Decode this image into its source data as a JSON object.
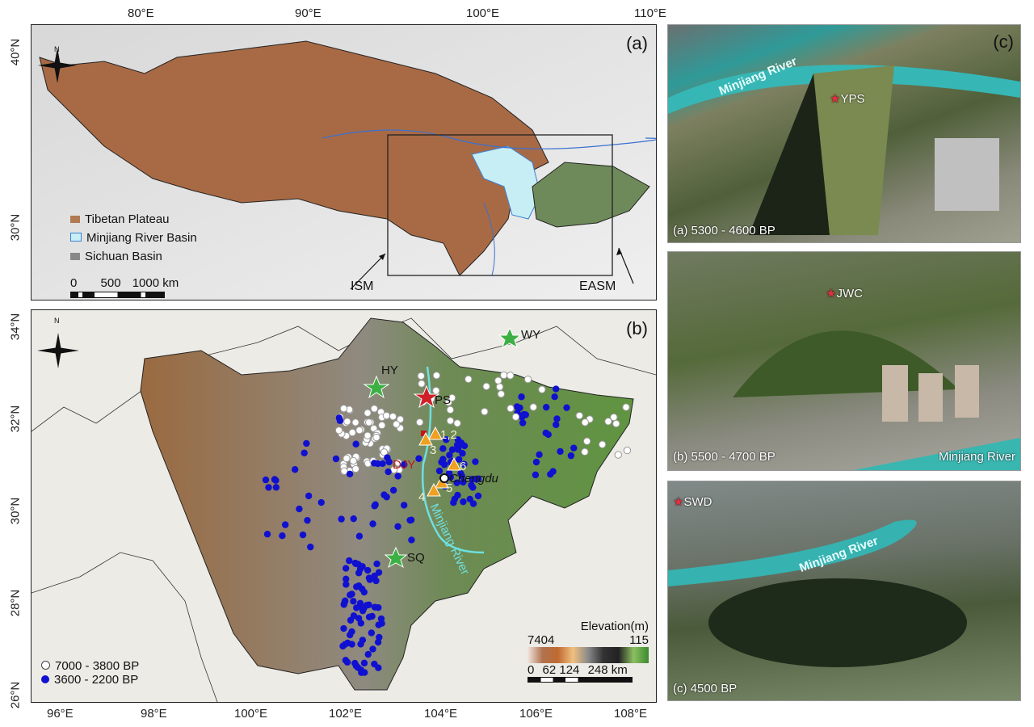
{
  "top_axis": [
    "80°E",
    "90°E",
    "100°E",
    "110°E"
  ],
  "panel_a": {
    "label": "(a)",
    "y_ticks": [
      "40°N",
      "30°N"
    ],
    "legend": [
      {
        "label": "Tibetan Plateau",
        "color": "#b07a52"
      },
      {
        "label": "Minjiang River Basin",
        "color": "#c8eef5"
      },
      {
        "label": "Sichuan Basin",
        "color": "#888888"
      }
    ],
    "scale": {
      "labels": [
        "0",
        "500",
        "1000"
      ],
      "unit": "km"
    },
    "arrows": [
      "ISM",
      "EASM"
    ],
    "north": "N"
  },
  "panel_b": {
    "label": "(b)",
    "y_ticks": [
      "34°N",
      "32°N",
      "30°N",
      "28°N",
      "26°N"
    ],
    "x_ticks": [
      "96°E",
      "98°E",
      "100°E",
      "102°E",
      "104°E",
      "106°E",
      "108°E"
    ],
    "north": "N",
    "sites": {
      "HY": "HY",
      "WY": "WY",
      "SQ": "SQ",
      "PS": "PS",
      "DJY": "DJY",
      "Chengdu": "Chengdu",
      "river": "Minjiang River"
    },
    "numbers": [
      "1,2",
      "3",
      "4",
      "5",
      "6"
    ],
    "legend": [
      {
        "label": "7000 - 3800 BP",
        "color": "#ffffff"
      },
      {
        "label": "3600 - 2200 BP",
        "color": "#1010d0"
      }
    ],
    "elevation": {
      "title": "Elevation(m)",
      "max": "7404",
      "min": "115"
    },
    "scale": {
      "labels": [
        "0",
        "62",
        "124",
        "248"
      ],
      "unit": "km"
    }
  },
  "panel_c": {
    "label": "(c)",
    "photos": [
      {
        "site": "YPS",
        "caption": "(a) 5300 - 4600 BP",
        "river": "Minjiang River"
      },
      {
        "site": "JWC",
        "caption": "(b) 5500 - 4700 BP",
        "river": "Minjiang River"
      },
      {
        "site": "SWD",
        "caption": "(c) 4500 BP",
        "river": "Minjiang River"
      }
    ]
  },
  "colors": {
    "star_green": "#3cb043",
    "star_red": "#d0202a",
    "triangle": "#f0a020",
    "dot_blue": "#1010d0"
  }
}
